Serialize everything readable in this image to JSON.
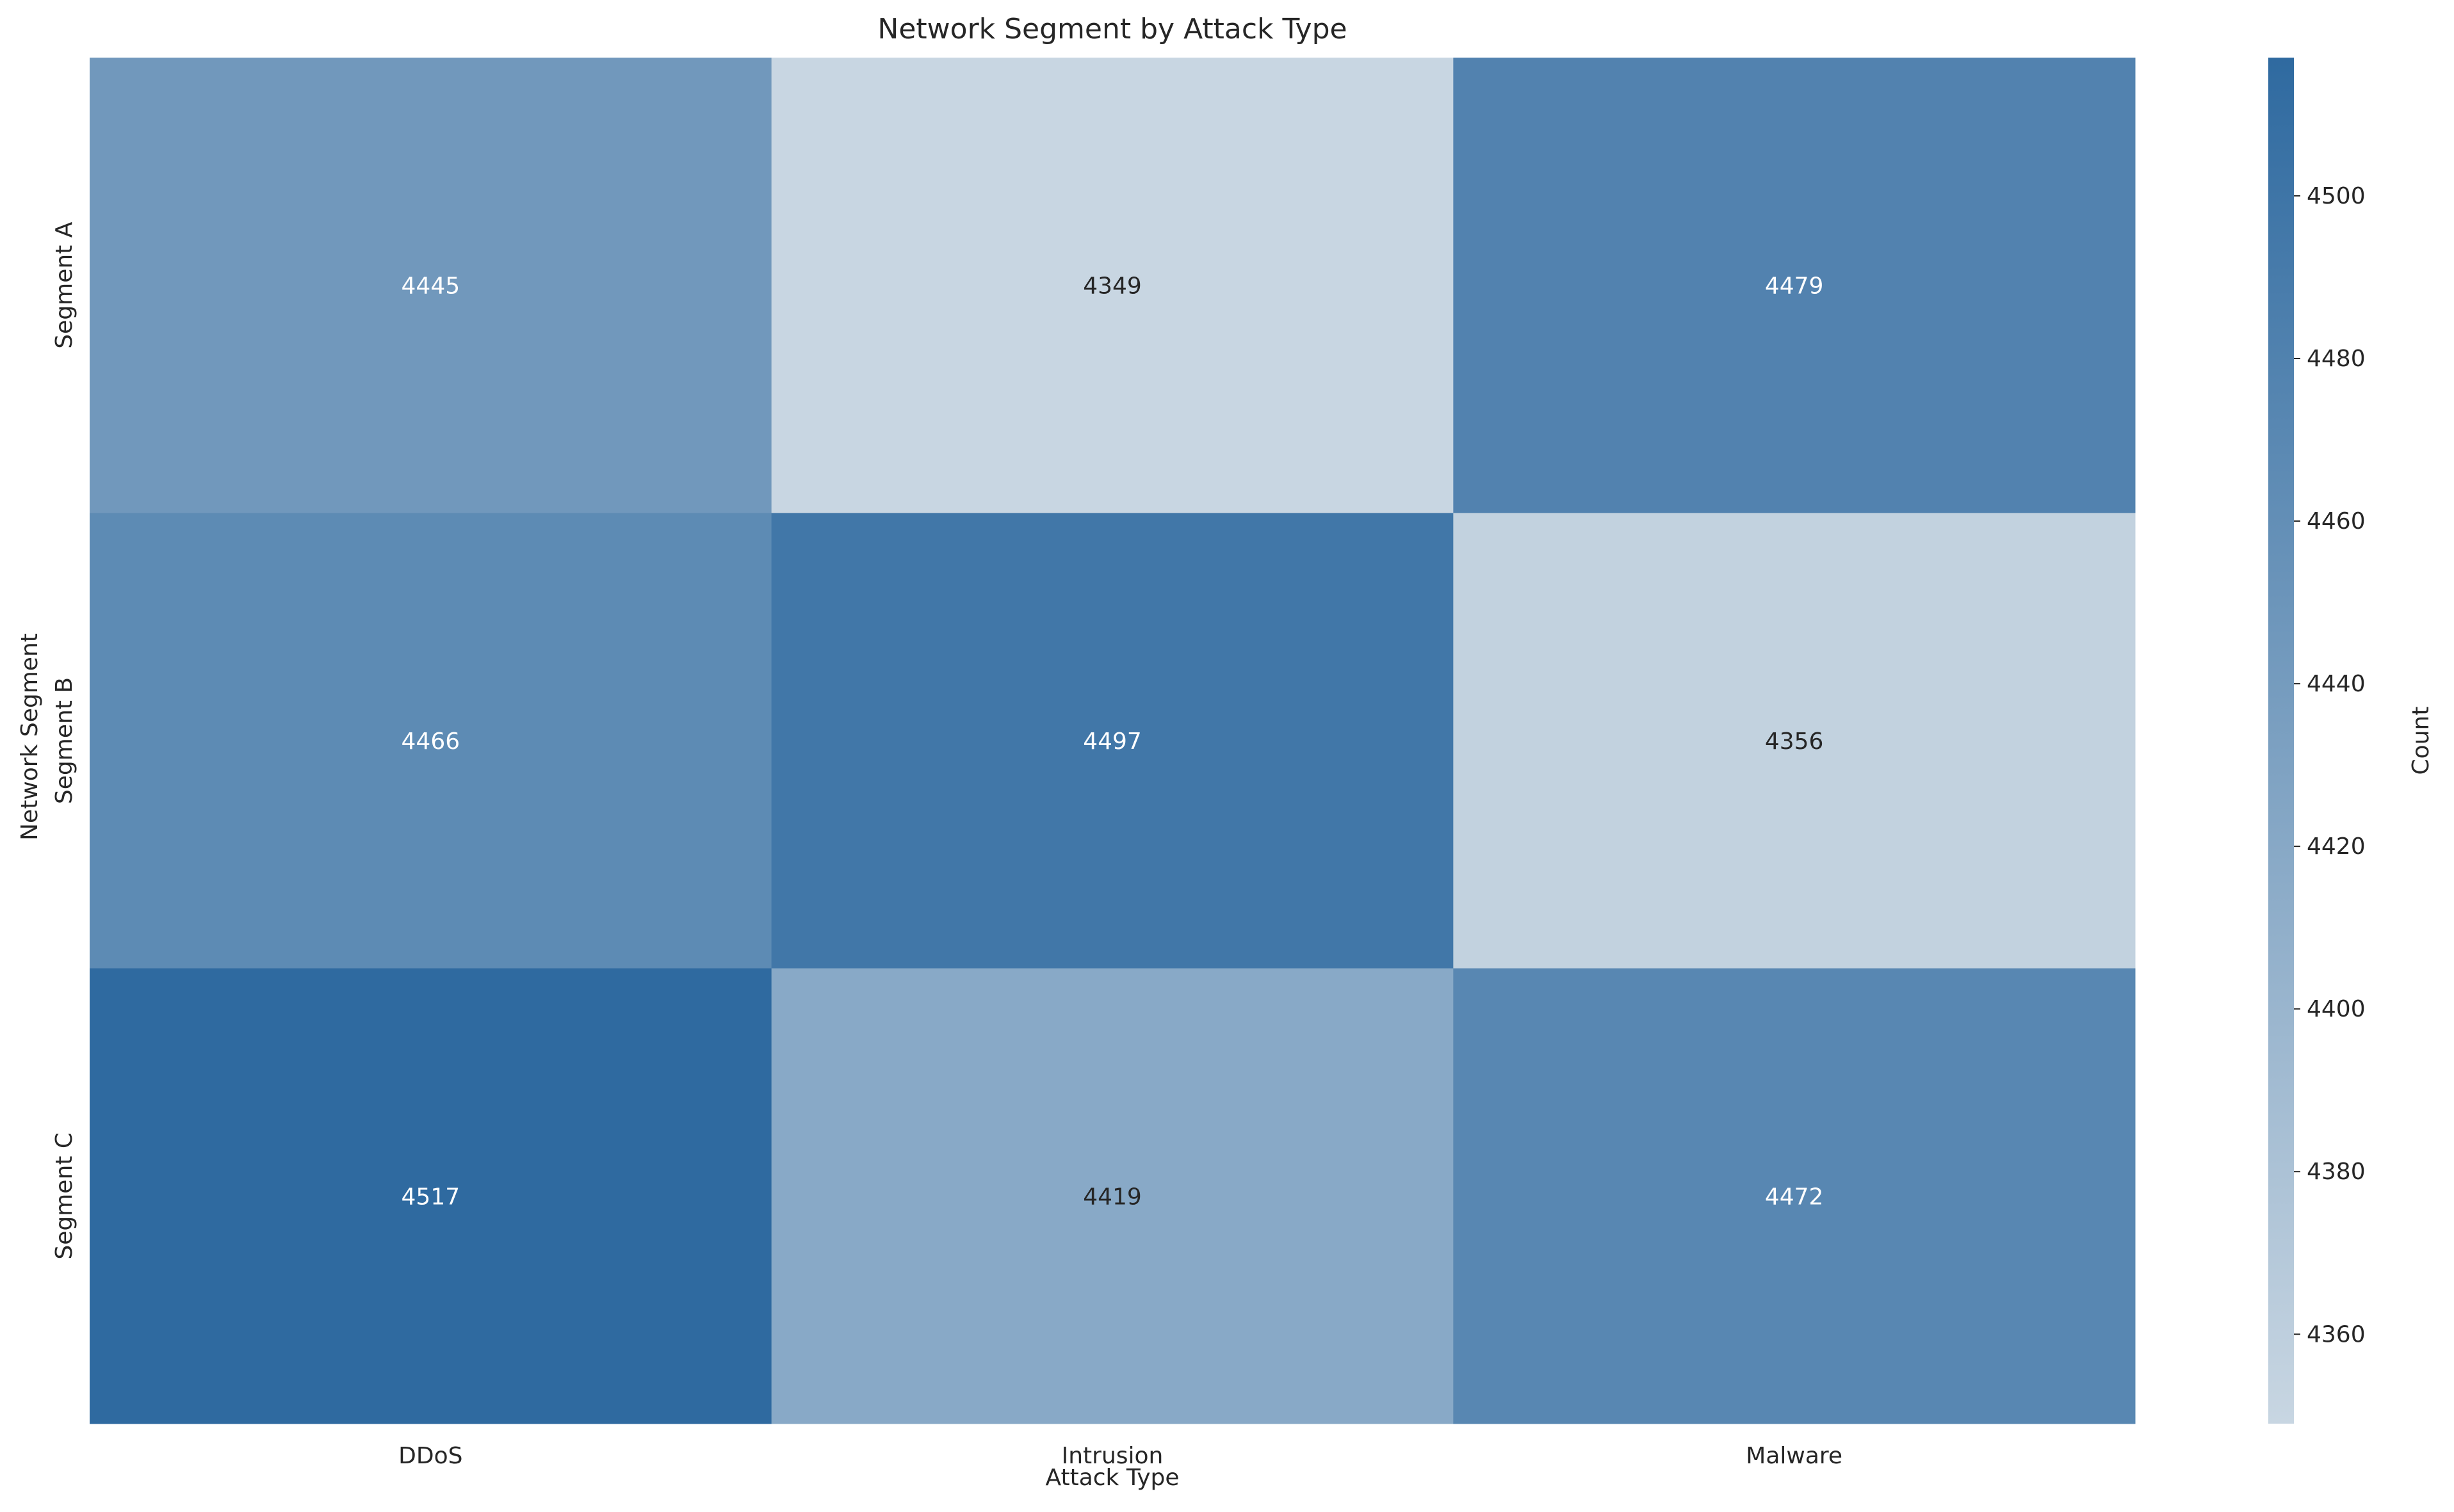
{
  "chart_data": {
    "type": "heatmap",
    "title": "Network Segment by Attack Type",
    "xlabel": "Attack Type",
    "ylabel": "Network Segment",
    "x_categories": [
      "DDoS",
      "Intrusion",
      "Malware"
    ],
    "y_categories": [
      "Segment A",
      "Segment B",
      "Segment C"
    ],
    "values": [
      [
        4445,
        4349,
        4479
      ],
      [
        4466,
        4497,
        4356
      ],
      [
        4517,
        4419,
        4472
      ]
    ],
    "colorbar": {
      "label": "Count",
      "range": [
        4349,
        4517
      ],
      "ticks": [
        4360,
        4380,
        4400,
        4420,
        4440,
        4460,
        4480,
        4500
      ],
      "color_low": "#c8d6e2",
      "color_high": "#2f6aa0"
    },
    "annotation_colors": {
      "light": "#ffffff",
      "dark": "#262626"
    }
  }
}
